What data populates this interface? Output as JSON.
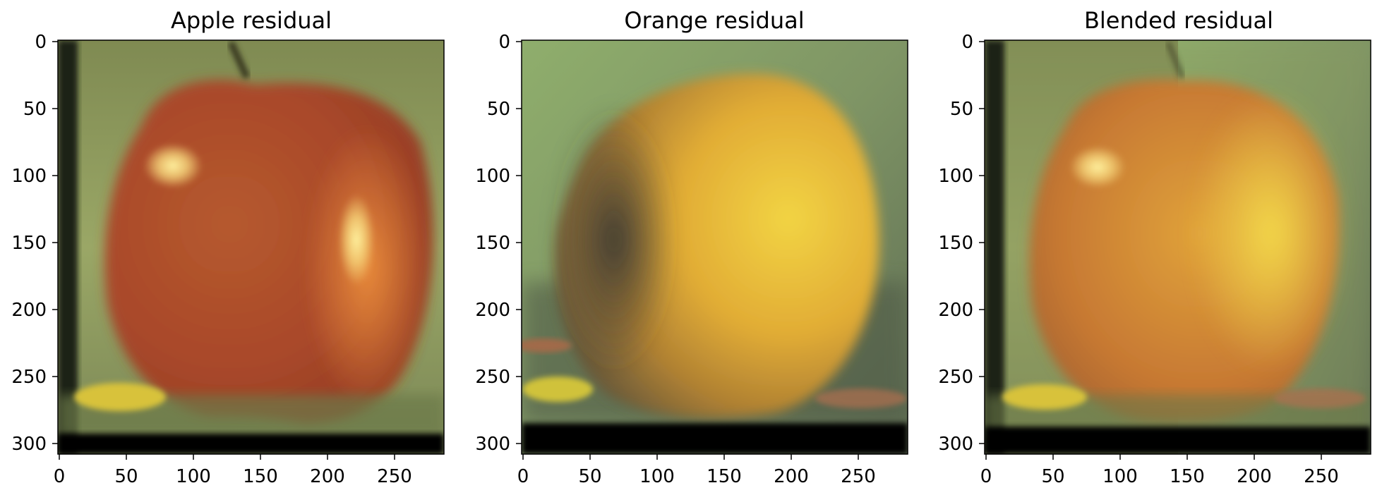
{
  "figure": {
    "panels": [
      {
        "title": "Apple residual",
        "subject": "apple",
        "x_ticks": [
          "0",
          "50",
          "100",
          "150",
          "200",
          "250"
        ],
        "y_ticks": [
          "0",
          "50",
          "100",
          "150",
          "200",
          "250",
          "300"
        ]
      },
      {
        "title": "Orange residual",
        "subject": "orange",
        "x_ticks": [
          "0",
          "50",
          "100",
          "150",
          "200",
          "250"
        ],
        "y_ticks": [
          "0",
          "50",
          "100",
          "150",
          "200",
          "250",
          "300"
        ]
      },
      {
        "title": "Blended residual",
        "subject": "blended",
        "x_ticks": [
          "0",
          "50",
          "100",
          "150",
          "200",
          "250"
        ],
        "y_ticks": [
          "0",
          "50",
          "100",
          "150",
          "200",
          "250",
          "300"
        ]
      }
    ],
    "axis_extent": {
      "x": [
        0,
        288
      ],
      "y": [
        0,
        308
      ]
    },
    "colors": {
      "background_green": "#8f9f62",
      "apple_red": "#b7502a",
      "apple_orange": "#d9792f",
      "orange_yellow": "#e8b934",
      "orange_shadow": "#4a4637",
      "frame_black": "#000000"
    }
  }
}
